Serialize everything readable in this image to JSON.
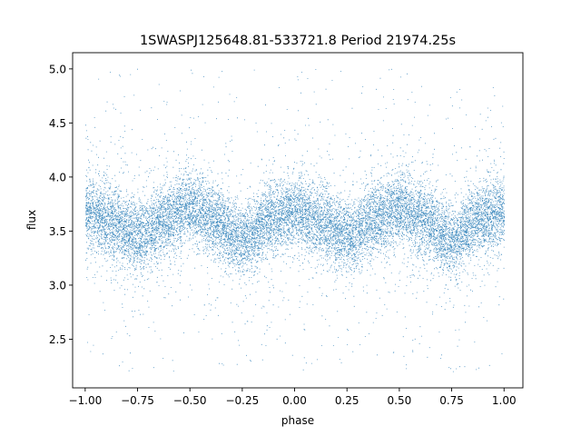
{
  "chart_data": {
    "type": "scatter",
    "title": "1SWASPJ125648.81-533721.8 Period 21974.25s",
    "xlabel": "phase",
    "ylabel": "flux",
    "xlim": [
      -1.06,
      1.09
    ],
    "ylim": [
      2.05,
      5.15
    ],
    "x_ticks": [
      -1.0,
      -0.75,
      -0.5,
      -0.25,
      0.0,
      0.25,
      0.5,
      0.75,
      1.0
    ],
    "x_tick_labels": [
      "−1.00",
      "−0.75",
      "−0.50",
      "−0.25",
      "0.00",
      "0.25",
      "0.50",
      "0.75",
      "1.00"
    ],
    "y_ticks": [
      2.5,
      3.0,
      3.5,
      4.0,
      4.5,
      5.0
    ],
    "y_tick_labels": [
      "2.5",
      "3.0",
      "3.5",
      "4.0",
      "4.5",
      "5.0"
    ],
    "grid": false,
    "legend": "none",
    "marker_color": "#1f77b4",
    "series": [
      {
        "x_range": [
          -1.0,
          1.0
        ],
        "y_range": [
          2.2,
          5.0
        ],
        "profile_phase": [
          -1.0,
          -0.9,
          -0.75,
          -0.6,
          -0.5,
          -0.4,
          -0.25,
          -0.1,
          0.0,
          0.1,
          0.25,
          0.4,
          0.5,
          0.6,
          0.75,
          0.9,
          1.0
        ],
        "profile_flux": [
          3.68,
          3.6,
          3.45,
          3.62,
          3.72,
          3.6,
          3.42,
          3.62,
          3.68,
          3.6,
          3.45,
          3.62,
          3.72,
          3.6,
          3.42,
          3.62,
          3.68
        ]
      }
    ]
  }
}
